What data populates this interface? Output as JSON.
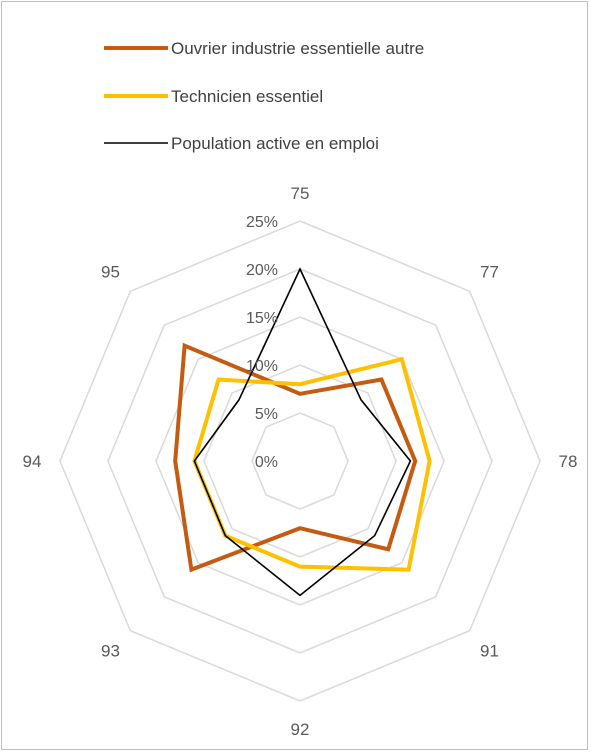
{
  "chart_data": {
    "type": "radar",
    "categories": [
      "75",
      "77",
      "78",
      "91",
      "92",
      "93",
      "94",
      "95"
    ],
    "rlim": [
      0,
      0.25
    ],
    "rticks": [
      0,
      0.05,
      0.1,
      0.15,
      0.2,
      0.25
    ],
    "rtick_labels": [
      "0%",
      "5%",
      "10%",
      "15%",
      "20%",
      "25%"
    ],
    "grid": true,
    "legend_position": "top",
    "series": [
      {
        "name": "Ouvrier industrie essentielle autre",
        "color": "#c55a11",
        "width": 4,
        "values": [
          0.07,
          0.12,
          0.12,
          0.13,
          0.07,
          0.16,
          0.13,
          0.17
        ]
      },
      {
        "name": "Technicien essentiel",
        "color": "#ffc000",
        "width": 4,
        "values": [
          0.08,
          0.15,
          0.135,
          0.16,
          0.11,
          0.11,
          0.11,
          0.12
        ]
      },
      {
        "name": "Population active en emploi",
        "color": "#000000",
        "width": 1.6,
        "values": [
          0.2,
          0.09,
          0.115,
          0.11,
          0.14,
          0.11,
          0.11,
          0.09
        ]
      }
    ]
  }
}
